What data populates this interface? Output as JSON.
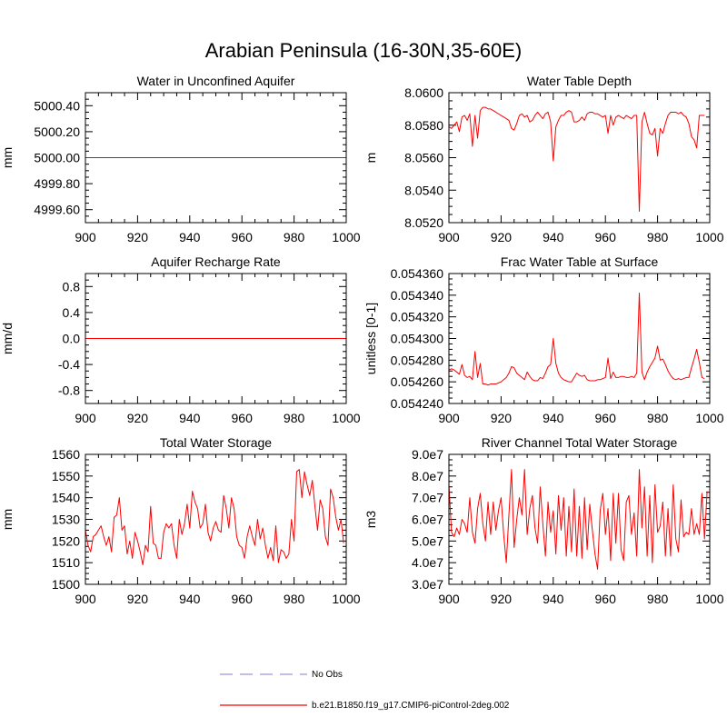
{
  "figure_title": "Arabian Peninsula (16-30N,35-60E)",
  "colors": {
    "model": "#ff0000",
    "obs": "#9999dd",
    "axis": "#000000"
  },
  "legend": [
    {
      "label": "No Obs",
      "style": "dashed",
      "color": "#9999dd"
    },
    {
      "label": "b.e21.B1850.f19_g17.CMIP6-piControl-2deg.002",
      "style": "solid",
      "color": "#ff0000"
    }
  ],
  "chart_data": [
    {
      "id": "water-unconfined-aquifer",
      "type": "line",
      "title": "Water in Unconfined Aquifer",
      "xlabel": "",
      "ylabel": "mm",
      "xlim": [
        900,
        1000
      ],
      "ylim": [
        4999.5,
        5000.5
      ],
      "xticks": [
        "900",
        "920",
        "940",
        "960",
        "980",
        "1000"
      ],
      "yticks": [
        "4999.60",
        "4999.80",
        "5000.00",
        "5000.20",
        "5000.40"
      ],
      "series": [
        {
          "name": "b.e21.B1850.f19_g17.CMIP6-piControl-2deg.002",
          "x": [
            900,
            1000
          ],
          "values": [
            5000.0,
            5000.0
          ]
        }
      ]
    },
    {
      "id": "water-table-depth",
      "type": "line",
      "title": "Water Table Depth",
      "xlabel": "",
      "ylabel": "m",
      "xlim": [
        900,
        1000
      ],
      "ylim": [
        8.052,
        8.06
      ],
      "xticks": [
        "900",
        "920",
        "940",
        "960",
        "980",
        "1000"
      ],
      "yticks": [
        "8.0520",
        "8.0540",
        "8.0560",
        "8.0580",
        "8.0600"
      ],
      "series": [
        {
          "name": "b.e21.B1850.f19_g17.CMIP6-piControl-2deg.002",
          "x_start": 900,
          "x_step": 1,
          "values": [
            8.0579,
            8.0578,
            8.058,
            8.0582,
            8.0576,
            8.0585,
            8.0586,
            8.0583,
            8.0587,
            8.0567,
            8.0586,
            8.0572,
            8.0589,
            8.0591,
            8.0591,
            8.059,
            8.059,
            8.0589,
            8.0588,
            8.0587,
            8.0586,
            8.0585,
            8.0584,
            8.0583,
            8.0578,
            8.0577,
            8.0581,
            8.0586,
            8.0587,
            8.0585,
            8.0586,
            8.0582,
            8.0583,
            8.0586,
            8.0588,
            8.0586,
            8.0584,
            8.0587,
            8.0588,
            8.0582,
            8.0558,
            8.0579,
            8.0583,
            8.0586,
            8.0586,
            8.0588,
            8.0589,
            8.0588,
            8.0582,
            8.0582,
            8.0583,
            8.0585,
            8.0583,
            8.0587,
            8.0588,
            8.0588,
            8.0587,
            8.0587,
            8.0586,
            8.0585,
            8.0586,
            8.0575,
            8.0586,
            8.058,
            8.0585,
            8.0586,
            8.0585,
            8.0584,
            8.0586,
            8.0585,
            8.0584,
            8.0586,
            8.0586,
            8.0527,
            8.0582,
            8.0588,
            8.0581,
            8.0575,
            8.0574,
            8.0578,
            8.0561,
            8.0578,
            8.0575,
            8.0581,
            8.0586,
            8.0588,
            8.0588,
            8.0588,
            8.0587,
            8.0588,
            8.0586,
            8.0585,
            8.0581,
            8.0573,
            8.0571,
            8.0566,
            8.0586,
            8.0586,
            8.0586
          ]
        }
      ]
    },
    {
      "id": "aquifer-recharge-rate",
      "type": "line",
      "title": "Aquifer Recharge Rate",
      "xlabel": "",
      "ylabel": "mm/d",
      "xlim": [
        900,
        1000
      ],
      "ylim": [
        -1.0,
        1.0
      ],
      "xticks": [
        "900",
        "920",
        "940",
        "960",
        "980",
        "1000"
      ],
      "yticks": [
        "-0.8",
        "-0.4",
        "0.0",
        "0.4",
        "0.8"
      ],
      "series": [
        {
          "name": "b.e21.B1850.f19_g17.CMIP6-piControl-2deg.002",
          "x": [
            900,
            1000
          ],
          "values": [
            0.0,
            0.0
          ]
        }
      ]
    },
    {
      "id": "frac-water-table-surface",
      "type": "line",
      "title": "Frac Water Table at Surface",
      "xlabel": "",
      "ylabel": "unitless [0-1]",
      "xlim": [
        900,
        1000
      ],
      "ylim": [
        0.05424,
        0.05436
      ],
      "xticks": [
        "900",
        "920",
        "940",
        "960",
        "980",
        "1000"
      ],
      "yticks": [
        "0.054240",
        "0.054260",
        "0.054280",
        "0.054300",
        "0.054320",
        "0.054340",
        "0.054360"
      ],
      "series": [
        {
          "name": "b.e21.B1850.f19_g17.CMIP6-piControl-2deg.002",
          "x_start": 900,
          "x_step": 1,
          "values": [
            0.054271,
            0.054272,
            0.054271,
            0.054269,
            0.054267,
            0.054276,
            0.054266,
            0.054264,
            0.054265,
            0.054262,
            0.054288,
            0.054264,
            0.054277,
            0.054258,
            0.054258,
            0.054257,
            0.054258,
            0.054258,
            0.054258,
            0.054259,
            0.05426,
            0.054262,
            0.054264,
            0.054268,
            0.054274,
            0.054273,
            0.054268,
            0.054266,
            0.054264,
            0.054262,
            0.054269,
            0.054265,
            0.054262,
            0.054261,
            0.054261,
            0.054264,
            0.054263,
            0.054268,
            0.054274,
            0.054276,
            0.0543,
            0.054277,
            0.054268,
            0.054264,
            0.054262,
            0.054261,
            0.05426,
            0.05426,
            0.054264,
            0.054268,
            0.054266,
            0.054265,
            0.054266,
            0.054262,
            0.054261,
            0.054261,
            0.054261,
            0.054262,
            0.054262,
            0.054263,
            0.054264,
            0.054282,
            0.054263,
            0.054269,
            0.054264,
            0.054264,
            0.054265,
            0.054265,
            0.054264,
            0.054264,
            0.054265,
            0.054264,
            0.054268,
            0.054342,
            0.054269,
            0.054262,
            0.054269,
            0.054274,
            0.054278,
            0.054282,
            0.054293,
            0.05428,
            0.054281,
            0.054276,
            0.05427,
            0.054266,
            0.054263,
            0.054262,
            0.054263,
            0.054262,
            0.054263,
            0.054264,
            0.054264,
            0.054273,
            0.054281,
            0.05429,
            0.054278,
            0.054264,
            0.054263
          ]
        }
      ]
    },
    {
      "id": "total-water-storage",
      "type": "line",
      "title": "Total Water Storage",
      "xlabel": "",
      "ylabel": "mm",
      "xlim": [
        900,
        1000
      ],
      "ylim": [
        1500,
        1560
      ],
      "xticks": [
        "900",
        "920",
        "940",
        "960",
        "980",
        "1000"
      ],
      "yticks": [
        "1500",
        "1510",
        "1520",
        "1530",
        "1540",
        "1550",
        "1560"
      ],
      "series": [
        {
          "name": "b.e21.B1850.f19_g17.CMIP6-piControl-2deg.002",
          "x_start": 900,
          "x_step": 1,
          "values": [
            1525,
            1518,
            1515,
            1522,
            1523,
            1525,
            1527,
            1522,
            1518,
            1522,
            1515,
            1531,
            1532,
            1540,
            1525,
            1527,
            1514,
            1520,
            1512,
            1524,
            1520,
            1515,
            1509,
            1518,
            1515,
            1536,
            1519,
            1518,
            1512,
            1512,
            1524,
            1528,
            1526,
            1528,
            1518,
            1512,
            1530,
            1523,
            1528,
            1537,
            1526,
            1543,
            1538,
            1535,
            1526,
            1528,
            1537,
            1524,
            1520,
            1526,
            1529,
            1525,
            1524,
            1541,
            1535,
            1526,
            1540,
            1535,
            1522,
            1518,
            1517,
            1512,
            1522,
            1527,
            1522,
            1518,
            1530,
            1521,
            1526,
            1518,
            1512,
            1517,
            1511,
            1527,
            1510,
            1516,
            1515,
            1512,
            1514,
            1530,
            1520,
            1552,
            1553,
            1540,
            1552,
            1546,
            1541,
            1548,
            1536,
            1525,
            1539,
            1535,
            1522,
            1518,
            1544,
            1540,
            1531,
            1525,
            1530,
            1519
          ]
        }
      ]
    },
    {
      "id": "river-channel-storage",
      "type": "line",
      "title": "River Channel Total Water Storage",
      "xlabel": "",
      "ylabel": "m3",
      "xlim": [
        900,
        1000
      ],
      "ylim": [
        30000000.0,
        90000000.0
      ],
      "xticks": [
        "900",
        "920",
        "940",
        "960",
        "980",
        "1000"
      ],
      "yticks": [
        "3.0e7",
        "4.0e7",
        "5.0e7",
        "6.0e7",
        "7.0e7",
        "8.0e7",
        "9.0e7"
      ],
      "series": [
        {
          "name": "b.e21.B1850.f19_g17.CMIP6-piControl-2deg.002",
          "x_start": 900,
          "x_step": 1,
          "values": [
            76000000.0,
            54000000.0,
            52000000.0,
            56000000.0,
            53000000.0,
            60000000.0,
            58000000.0,
            54000000.0,
            70000000.0,
            54000000.0,
            49000000.0,
            65000000.0,
            72000000.0,
            58000000.0,
            50000000.0,
            68000000.0,
            53000000.0,
            68000000.0,
            55000000.0,
            64000000.0,
            70000000.0,
            53000000.0,
            40000000.0,
            62000000.0,
            83000000.0,
            47000000.0,
            60000000.0,
            70000000.0,
            62000000.0,
            83000000.0,
            53000000.0,
            65000000.0,
            71000000.0,
            56000000.0,
            49000000.0,
            75000000.0,
            58000000.0,
            43000000.0,
            68000000.0,
            54000000.0,
            64000000.0,
            44000000.0,
            71000000.0,
            55000000.0,
            70000000.0,
            43000000.0,
            66000000.0,
            45000000.0,
            74000000.0,
            43000000.0,
            66000000.0,
            42000000.0,
            70000000.0,
            46000000.0,
            67000000.0,
            55000000.0,
            44000000.0,
            37000000.0,
            64000000.0,
            72000000.0,
            53000000.0,
            65000000.0,
            41000000.0,
            72000000.0,
            49000000.0,
            72000000.0,
            46000000.0,
            41000000.0,
            68000000.0,
            71000000.0,
            53000000.0,
            63000000.0,
            43000000.0,
            83000000.0,
            56000000.0,
            75000000.0,
            43000000.0,
            71000000.0,
            40000000.0,
            76000000.0,
            54000000.0,
            57000000.0,
            68000000.0,
            43000000.0,
            65000000.0,
            43000000.0,
            76000000.0,
            51000000.0,
            45000000.0,
            69000000.0,
            52000000.0,
            54000000.0,
            53000000.0,
            65000000.0,
            53000000.0,
            58000000.0,
            53000000.0,
            72000000.0,
            51000000.0,
            73000000.0
          ]
        }
      ]
    }
  ]
}
